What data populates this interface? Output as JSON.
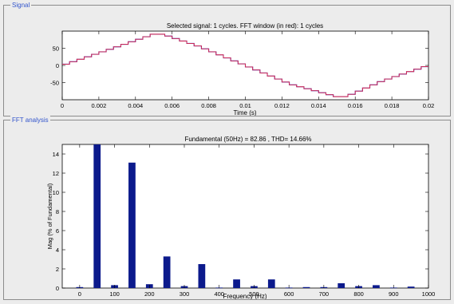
{
  "signal_panel": {
    "legend": "Signal",
    "title": "Selected signal: 1 cycles. FFT window (in red): 1 cycles"
  },
  "fft_panel": {
    "legend": "FFT analysis",
    "title": "Fundamental (50Hz) = 82.86 , THD= 14.66%"
  },
  "colors": {
    "signal_line": "#1e33c9",
    "fft_window": "#e0284a",
    "bar": "#0c1a8c",
    "panel_background": "#ececec",
    "axes_background": "#ffffff"
  },
  "chart_data": [
    {
      "type": "line",
      "title": "Selected signal: 1 cycles. FFT window (in red): 1 cycles",
      "xlabel": "Time (s)",
      "ylabel": "",
      "xlim": [
        0,
        0.02
      ],
      "ylim": [
        -100,
        100
      ],
      "xticks": [
        0,
        0.002,
        0.004,
        0.006,
        0.008,
        0.01,
        0.012,
        0.014,
        0.016,
        0.018,
        0.02
      ],
      "xtick_labels": [
        "0",
        "0.002",
        "0.004",
        "0.006",
        "0.008",
        "0.01",
        "0.012",
        "0.014",
        "0.016",
        "0.018",
        "0.02"
      ],
      "yticks": [
        -50,
        0,
        50
      ],
      "ytick_labels": [
        "-50",
        "0",
        "50"
      ],
      "grid": false,
      "series": [
        {
          "color": "#1e33c9",
          "shape": "stepped triangle wave",
          "x": [
            0,
            0.0025,
            0.005,
            0.0055,
            0.0075,
            0.01,
            0.0125,
            0.015,
            0.0155,
            0.0175,
            0.02
          ],
          "y": [
            0,
            45,
            91,
            91,
            55,
            0,
            -55,
            -91,
            -91,
            -45,
            0
          ]
        },
        {
          "color": "#e0284a",
          "shape": "FFT window overlay (same waveform)",
          "x": [
            0,
            0.0025,
            0.005,
            0.0055,
            0.0075,
            0.01,
            0.0125,
            0.015,
            0.0155,
            0.0175,
            0.02
          ],
          "y": [
            0,
            45,
            91,
            91,
            55,
            0,
            -55,
            -91,
            -91,
            -45,
            0
          ]
        }
      ]
    },
    {
      "type": "bar",
      "title": "Fundamental (50Hz) = 82.86 , THD= 14.66%",
      "xlabel": "Frequency (Hz)",
      "ylabel": "Mag (% of Fundamental)",
      "xlim": [
        -50,
        1000
      ],
      "ylim": [
        0,
        15
      ],
      "xticks": [
        0,
        100,
        200,
        300,
        400,
        500,
        600,
        700,
        800,
        900,
        1000
      ],
      "xtick_labels": [
        "0",
        "100",
        "200",
        "300",
        "400",
        "500",
        "600",
        "700",
        "800",
        "900",
        "1000"
      ],
      "yticks": [
        0,
        2,
        4,
        6,
        8,
        10,
        12,
        14
      ],
      "ytick_labels": [
        "0",
        "2",
        "4",
        "6",
        "8",
        "10",
        "12",
        "14"
      ],
      "grid": false,
      "x": [
        0,
        50,
        100,
        150,
        200,
        250,
        300,
        350,
        400,
        450,
        500,
        550,
        600,
        650,
        700,
        750,
        800,
        850,
        900,
        950
      ],
      "values": [
        0.1,
        15,
        0.3,
        13.1,
        0.4,
        3.3,
        0.2,
        2.5,
        0.05,
        0.9,
        0.2,
        0.9,
        0.05,
        0.1,
        0.1,
        0.5,
        0.2,
        0.3,
        0.05,
        0.15
      ]
    }
  ]
}
